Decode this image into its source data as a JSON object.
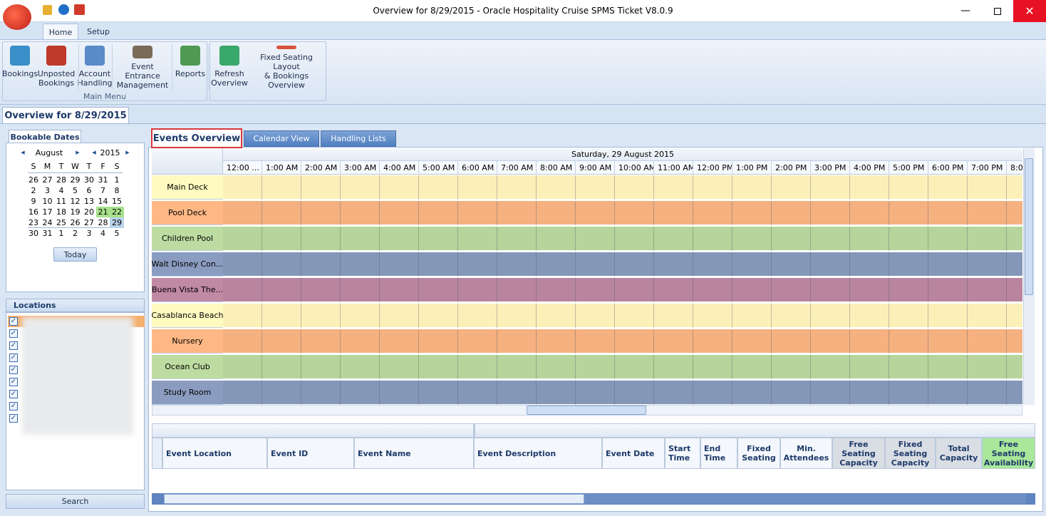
{
  "window": {
    "title": "Overview for 8/29/2015 - Oracle Hospitality Cruise SPMS Ticket V8.0.9"
  },
  "ribbon": {
    "tabs": [
      "Home",
      "Setup"
    ],
    "main_menu": {
      "label": "Main Menu",
      "buttons": [
        {
          "lines": [
            "Bookings"
          ]
        },
        {
          "lines": [
            "Unposted",
            "Bookings"
          ]
        },
        {
          "lines": [
            "Account",
            "Handling"
          ]
        },
        {
          "lines": [
            "Event Entrance",
            "Management"
          ]
        },
        {
          "lines": [
            "Reports"
          ]
        }
      ]
    },
    "overview_buttons": [
      {
        "lines": [
          "Refresh",
          "Overview"
        ]
      },
      {
        "lines": [
          "Fixed Seating Layout",
          "& Bookings Overview"
        ]
      }
    ]
  },
  "page_tab": "Overview for 8/29/2015",
  "bookable_dates": {
    "title": "Bookable Dates",
    "month": "August",
    "year": "2015",
    "weekdays": [
      "S",
      "M",
      "T",
      "W",
      "T",
      "F",
      "S"
    ],
    "weeks": [
      [
        26,
        27,
        28,
        29,
        30,
        31,
        1
      ],
      [
        2,
        3,
        4,
        5,
        6,
        7,
        8
      ],
      [
        9,
        10,
        11,
        12,
        13,
        14,
        15
      ],
      [
        16,
        17,
        18,
        19,
        20,
        21,
        22
      ],
      [
        23,
        24,
        25,
        26,
        27,
        28,
        29
      ],
      [
        30,
        31,
        1,
        2,
        3,
        4,
        5
      ]
    ],
    "today_button": "Today"
  },
  "locations": {
    "title": "Locations",
    "search_button": "Search"
  },
  "view_tabs": [
    "Events Overview",
    "Calendar View",
    "Handling Lists"
  ],
  "schedule": {
    "date": "Saturday, 29 August 2015",
    "hours": [
      "12:00 ...",
      "1:00 AM",
      "2:00 AM",
      "3:00 AM",
      "4:00 AM",
      "5:00 AM",
      "6:00 AM",
      "7:00 AM",
      "8:00 AM",
      "9:00 AM",
      "10:00 AM",
      "11:00 AM",
      "12:00 PM",
      "1:00 PM",
      "2:00 PM",
      "3:00 PM",
      "4:00 PM",
      "5:00 PM",
      "6:00 PM",
      "7:00 PM",
      "8:0"
    ],
    "rows": [
      {
        "name": "Main Deck",
        "color": "#fcf0b9"
      },
      {
        "name": "Pool Deck",
        "color": "#f5b180"
      },
      {
        "name": "Children Pool",
        "color": "#b6d49b"
      },
      {
        "name": "Walt Disney Con...",
        "color": "#8597b9"
      },
      {
        "name": "Buena Vista The...",
        "color": "#b9849e"
      },
      {
        "name": "Casablanca Beach",
        "color": "#fcf0b9"
      },
      {
        "name": "Nursery",
        "color": "#f5b180"
      },
      {
        "name": "Ocean Club",
        "color": "#b6d49b"
      },
      {
        "name": "Study Room",
        "color": "#8597b9"
      }
    ]
  },
  "grid": {
    "columns": [
      {
        "lines": [
          "Event Location"
        ]
      },
      {
        "lines": [
          "Event ID"
        ]
      },
      {
        "lines": [
          "Event Name"
        ]
      },
      {
        "lines": [
          "Event Description"
        ]
      },
      {
        "lines": [
          "Event Date"
        ]
      },
      {
        "lines": [
          "Start",
          "Time"
        ]
      },
      {
        "lines": [
          "End",
          "Time"
        ]
      },
      {
        "lines": [
          "Fixed",
          "Seating"
        ]
      },
      {
        "lines": [
          "Min.",
          "Attendees"
        ]
      },
      {
        "lines": [
          "Free",
          "Seating",
          "Capacity"
        ]
      },
      {
        "lines": [
          "Fixed",
          "Seating",
          "Capacity"
        ]
      },
      {
        "lines": [
          "Total",
          "Capacity"
        ]
      },
      {
        "lines": [
          "Free",
          "Seating",
          "Availability"
        ]
      }
    ]
  }
}
